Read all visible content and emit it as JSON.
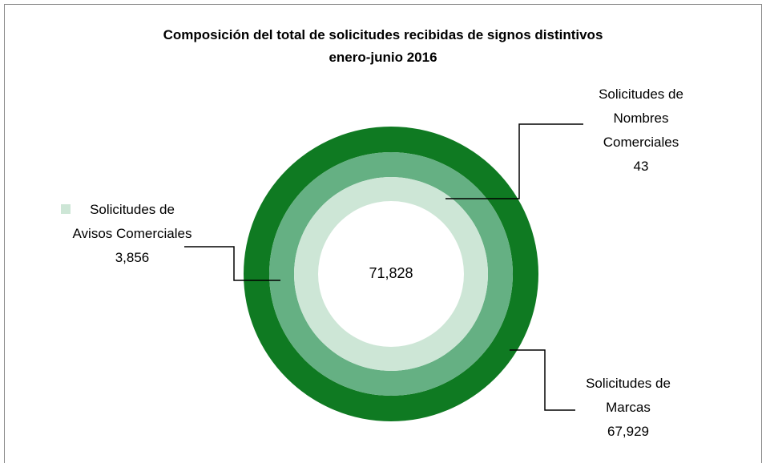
{
  "chart_data": {
    "type": "donut",
    "title": "Composición del total de solicitudes recibidas de signos distintivos",
    "subtitle": "enero-junio 2016",
    "categories": [
      "Solicitudes de Marcas",
      "Solicitudes de Avisos Comerciales",
      "Solicitudes de Nombres Comerciales"
    ],
    "values": [
      67929,
      3856,
      43
    ],
    "value_labels": [
      "67,929",
      "3,856",
      "43"
    ],
    "colors": [
      "#0f7a22",
      "#65b083",
      "#cde6d6"
    ],
    "center_value": 71828,
    "center_label": "71,828"
  }
}
